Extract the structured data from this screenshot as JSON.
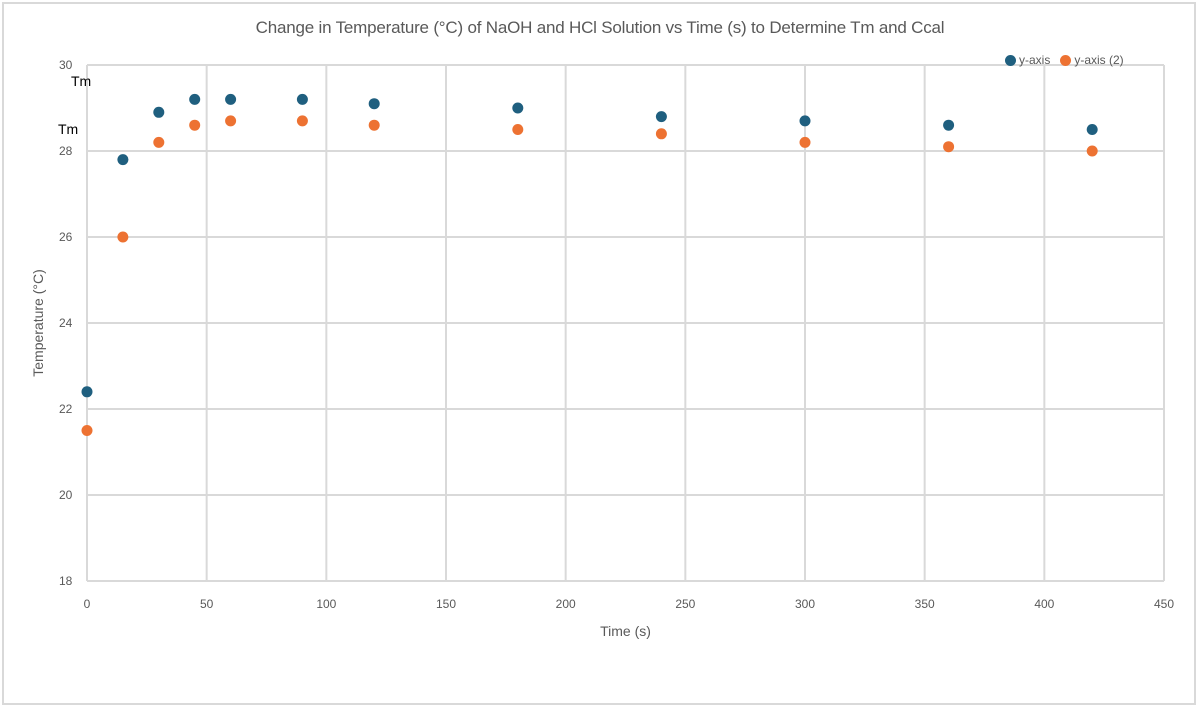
{
  "chart_data": {
    "type": "scatter",
    "title": "Change in Temperature (°C) of NaOH and HCl Solution vs Time (s) to Determine Tm and Ccal",
    "xlabel": "Time (s)",
    "ylabel": "Temperature (°C)",
    "xlim": [
      0,
      450
    ],
    "ylim": [
      18,
      30
    ],
    "x_ticks": [
      0,
      50,
      100,
      150,
      200,
      250,
      300,
      350,
      400,
      450
    ],
    "y_ticks": [
      18,
      20,
      22,
      24,
      26,
      28,
      30
    ],
    "grid": true,
    "legend_position": "top-right",
    "series": [
      {
        "name": "y-axis",
        "color": "#1f5f7f",
        "points": [
          [
            0,
            22.4
          ],
          [
            15,
            27.8
          ],
          [
            30,
            28.9
          ],
          [
            45,
            29.2
          ],
          [
            60,
            29.2
          ],
          [
            90,
            29.2
          ],
          [
            120,
            29.1
          ],
          [
            180,
            29.0
          ],
          [
            240,
            28.8
          ],
          [
            300,
            28.7
          ],
          [
            360,
            28.6
          ],
          [
            420,
            28.5
          ]
        ]
      },
      {
        "name": "y-axis (2)",
        "color": "#ed7232",
        "points": [
          [
            0,
            21.5
          ],
          [
            15,
            26.0
          ],
          [
            30,
            28.2
          ],
          [
            45,
            28.6
          ],
          [
            60,
            28.7
          ],
          [
            90,
            28.7
          ],
          [
            120,
            28.6
          ],
          [
            180,
            28.5
          ],
          [
            240,
            28.4
          ],
          [
            300,
            28.2
          ],
          [
            360,
            28.1
          ],
          [
            420,
            28.0
          ]
        ]
      }
    ],
    "annotations": [
      {
        "text": "Tm",
        "near_y": 29.6
      },
      {
        "text": "Tm",
        "near_y": 28.5
      }
    ]
  },
  "legend": {
    "items": [
      {
        "label": "y-axis",
        "color": "#1f5f7f"
      },
      {
        "label": "y-axis (2)",
        "color": "#ed7232"
      }
    ]
  }
}
